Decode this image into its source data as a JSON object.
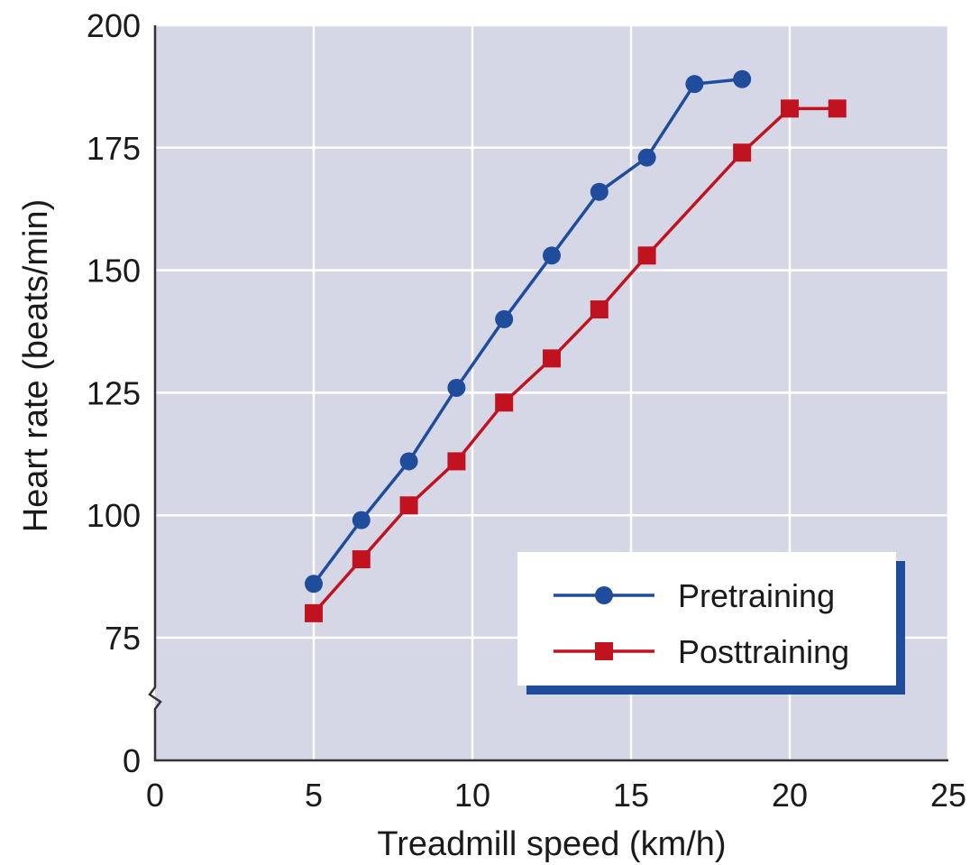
{
  "chart_data": {
    "type": "line",
    "title": "",
    "xlabel": "Treadmill speed (km/h)",
    "ylabel": "Heart rate (beats/min)",
    "xlim": [
      0,
      25
    ],
    "ylim_display": [
      0,
      200
    ],
    "y_axis_break": "between 0 and 75",
    "x_ticks": [
      0,
      5,
      10,
      15,
      20,
      25
    ],
    "y_ticks": [
      0,
      75,
      100,
      125,
      150,
      175,
      200
    ],
    "x_tick_labels": [
      "0",
      "5",
      "10",
      "15",
      "20",
      "25"
    ],
    "y_tick_labels": [
      "0",
      "75",
      "100",
      "125",
      "150",
      "175",
      "200"
    ],
    "grid": true,
    "legend_position": "bottom-right",
    "series": [
      {
        "name": "Pretraining",
        "color": "#1f4d9c",
        "marker": "circle",
        "x": [
          5.0,
          6.5,
          8.0,
          9.5,
          11.0,
          12.5,
          14.0,
          15.5,
          17.0,
          18.5
        ],
        "y": [
          86,
          99,
          111,
          126,
          140,
          153,
          166,
          173,
          188,
          189
        ]
      },
      {
        "name": "Posttraining",
        "color": "#c0121f",
        "marker": "square",
        "x": [
          5.0,
          6.5,
          8.0,
          9.5,
          11.0,
          12.5,
          14.0,
          15.5,
          18.5,
          20.0,
          21.5
        ],
        "y": [
          80,
          91,
          102,
          111,
          123,
          132,
          142,
          153,
          174,
          183,
          183
        ]
      }
    ]
  },
  "colors": {
    "plot_background": "#d6d7e6",
    "gridline": "#ffffff",
    "axis": "#333333",
    "legend_shadow": "#1f4d9c"
  }
}
